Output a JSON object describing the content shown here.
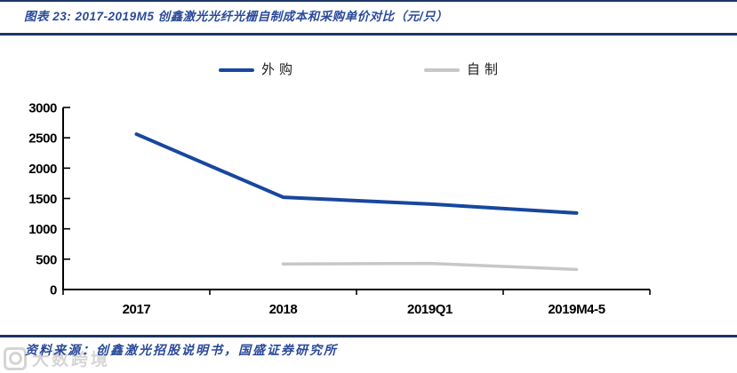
{
  "header": {
    "title": "图表 23: 2017-2019M5 创鑫激光光纤光栅自制成本和采购单价对比（元/只）",
    "rule_color": "#1c3564",
    "title_color": "#2a4a9a"
  },
  "chart_data": {
    "type": "line",
    "title": "2017-2019M5 创鑫激光光纤光栅自制成本和采购单价对比（元/只）",
    "categories": [
      "2017",
      "2018",
      "2019Q1",
      "2019M4-5"
    ],
    "series": [
      {
        "name": "外购",
        "color": "#17479E",
        "stroke_width": 4,
        "values": [
          2560,
          1520,
          1410,
          1260
        ]
      },
      {
        "name": "自制",
        "color": "#C7C7C7",
        "stroke_width": 3.5,
        "values": [
          null,
          420,
          430,
          330
        ]
      }
    ],
    "xlabel": "",
    "ylabel": "",
    "ylim": [
      0,
      3000
    ],
    "yticks": [
      0,
      500,
      1000,
      1500,
      2000,
      2500,
      3000
    ],
    "grid": false,
    "legend_position": "top",
    "axis_color": "#000000"
  },
  "footer": {
    "source": "资料来源：创鑫激光招股说明书，国盛证券研究所"
  },
  "watermark": {
    "text": "大数跨境"
  }
}
